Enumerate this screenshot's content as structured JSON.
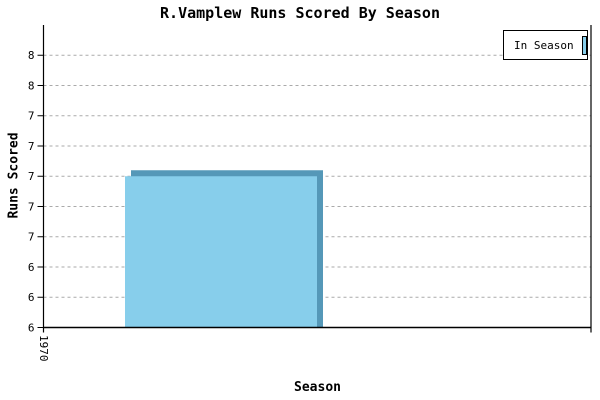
{
  "title": "R.Vamplew Runs Scored By Season",
  "legend": {
    "label": "In Season",
    "swatch_color": "#87CEEB"
  },
  "axes": {
    "y_label": "Runs Scored",
    "x_label": "Season",
    "y_tick_labels_bottom_to_top": [
      "6",
      "6",
      "6",
      "7",
      "7",
      "7",
      "7",
      "7",
      "8",
      "8"
    ],
    "x_tick_labels": [
      "1970"
    ]
  },
  "chart_data": {
    "type": "bar",
    "title": "R.Vamplew Runs Scored By Season",
    "xlabel": "Season",
    "ylabel": "Runs Scored",
    "categories": [
      "1970"
    ],
    "series": [
      {
        "name": "In Season",
        "values": [
          7.0
        ]
      }
    ],
    "ylim": [
      6.0,
      8.0
    ],
    "y_tick_step": 0.2,
    "y_tick_values": [
      6.0,
      6.2,
      6.4,
      6.6,
      6.8,
      7.0,
      7.2,
      7.4,
      7.6,
      7.8
    ],
    "y_tick_labels": [
      "6",
      "6",
      "6",
      "7",
      "7",
      "7",
      "7",
      "7",
      "8",
      "8"
    ],
    "grid": "horizontal-dashed",
    "legend_position": "top-right",
    "bar_style": "3d-shaded"
  },
  "colors": {
    "background": "#FFFFFF",
    "bar_fill": "#87CEEB",
    "bar_shade": "#5598B8",
    "grid": "#AAAAAA",
    "axis": "#000000",
    "text": "#000000",
    "legend_border": "#000000"
  }
}
